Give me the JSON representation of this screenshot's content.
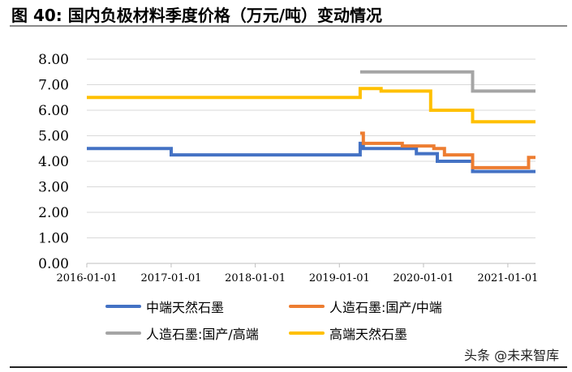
{
  "figure": {
    "title": "图 40:  国内负极材料季度价格（万元/吨）变动情况"
  },
  "watermark": "头条 @未来智库",
  "chart_data": {
    "type": "line",
    "title": "",
    "xlabel": "",
    "ylabel": "",
    "xlim": [
      "2016-01-01",
      "2021-05-01"
    ],
    "ylim": [
      0,
      8
    ],
    "x_ticks": [
      "2016-01-01",
      "2017-01-01",
      "2018-01-01",
      "2019-01-01",
      "2020-01-01",
      "2021-01-01"
    ],
    "y_ticks": [
      "0.00",
      "1.00",
      "2.00",
      "3.00",
      "4.00",
      "5.00",
      "6.00",
      "7.00",
      "8.00"
    ],
    "grid": "horizontal",
    "legend_position": "bottom",
    "series": [
      {
        "name": "中端天然石墨",
        "color": "#4472C4",
        "points": [
          [
            "2016-01-01",
            4.5
          ],
          [
            "2017-01-01",
            4.5
          ],
          [
            "2017-01-01",
            4.25
          ],
          [
            "2019-04-01",
            4.25
          ],
          [
            "2019-04-01",
            4.7
          ],
          [
            "2019-04-15",
            4.7
          ],
          [
            "2019-04-15",
            4.5
          ],
          [
            "2019-12-01",
            4.5
          ],
          [
            "2019-12-01",
            4.3
          ],
          [
            "2020-03-01",
            4.3
          ],
          [
            "2020-03-01",
            4.0
          ],
          [
            "2020-08-01",
            4.0
          ],
          [
            "2020-08-01",
            3.6
          ],
          [
            "2021-05-01",
            3.6
          ]
        ]
      },
      {
        "name": "人造石墨:国产/中端",
        "color": "#ED7D31",
        "points": [
          [
            "2019-04-01",
            5.1
          ],
          [
            "2019-04-15",
            5.1
          ],
          [
            "2019-04-15",
            4.7
          ],
          [
            "2019-10-01",
            4.7
          ],
          [
            "2019-10-01",
            4.6
          ],
          [
            "2020-02-15",
            4.6
          ],
          [
            "2020-02-15",
            4.5
          ],
          [
            "2020-04-01",
            4.5
          ],
          [
            "2020-04-01",
            4.25
          ],
          [
            "2020-08-01",
            4.25
          ],
          [
            "2020-08-01",
            3.75
          ],
          [
            "2021-04-01",
            3.75
          ],
          [
            "2021-04-01",
            4.15
          ],
          [
            "2021-05-01",
            4.15
          ]
        ]
      },
      {
        "name": "人造石墨:国产/高端",
        "color": "#A5A5A5",
        "points": [
          [
            "2019-04-01",
            7.5
          ],
          [
            "2020-08-01",
            7.5
          ],
          [
            "2020-08-01",
            6.75
          ],
          [
            "2021-05-01",
            6.75
          ]
        ]
      },
      {
        "name": "高端天然石墨",
        "color": "#FFC000",
        "points": [
          [
            "2016-01-01",
            6.5
          ],
          [
            "2019-04-01",
            6.5
          ],
          [
            "2019-04-01",
            6.85
          ],
          [
            "2019-07-01",
            6.85
          ],
          [
            "2019-07-01",
            6.75
          ],
          [
            "2020-02-01",
            6.75
          ],
          [
            "2020-02-01",
            6.0
          ],
          [
            "2020-08-01",
            6.0
          ],
          [
            "2020-08-01",
            5.55
          ],
          [
            "2021-05-01",
            5.55
          ]
        ]
      }
    ]
  }
}
